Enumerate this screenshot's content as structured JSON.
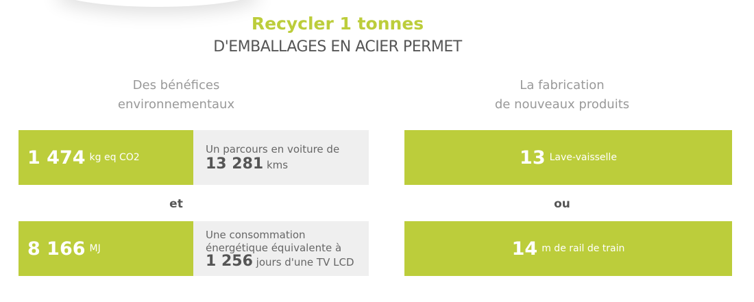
{
  "title": "Recycler 1 tonnes",
  "subtitle": "D'EMBALLAGES EN ACIER PERMET",
  "left": {
    "heading_line1": "Des bénéfices",
    "heading_line2": "environnementaux",
    "rows": [
      {
        "value": "1 474",
        "unit": "kg eq CO2",
        "desc": "Un parcours en voiture de",
        "desc_value": "13 281",
        "desc_unit": "kms"
      },
      {
        "value": "8 166",
        "unit": "MJ",
        "desc": "Une consommation énergétique équivalente à",
        "desc_value": "1 256",
        "desc_unit": "jours d'une TV LCD"
      }
    ],
    "separator": "et"
  },
  "right": {
    "heading_line1": "La fabrication",
    "heading_line2": "de nouveaux produits",
    "rows": [
      {
        "value": "13",
        "unit": "Lave-vaisselle"
      },
      {
        "value": "14",
        "unit": "m de rail de train"
      }
    ],
    "separator": "ou"
  },
  "colors": {
    "accent": "#bccd3b",
    "panel": "#efefef"
  }
}
